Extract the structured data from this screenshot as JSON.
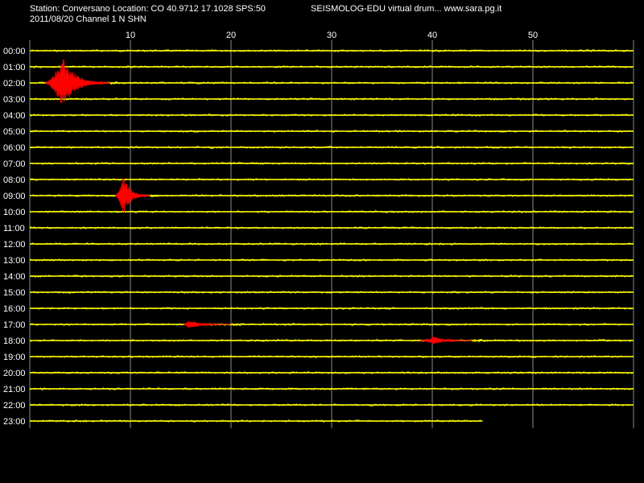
{
  "header": {
    "station_line": "Station: Conversano Location: CO 40.9712 17.1028 SPS:50",
    "app_line": "SEISMOLOG-EDU virtual drum... www.sara.pg.it",
    "date_channel_line": "2011/08/20  Channel 1 N SHN"
  },
  "colors": {
    "background": "#000000",
    "grid": "#8a8a8a",
    "trace": "#ffff00",
    "event": "#ff0000",
    "text": "#ffffff"
  },
  "chart_data": {
    "type": "line",
    "title": "",
    "xlabel": "",
    "ylabel": "",
    "x_unit": "minutes",
    "xlim": [
      0,
      60
    ],
    "x_ticks": [
      10,
      20,
      30,
      40,
      50
    ],
    "grid": true,
    "hour_labels": [
      "00:00",
      "01:00",
      "02:00",
      "03:00",
      "04:00",
      "05:00",
      "06:00",
      "07:00",
      "08:00",
      "09:00",
      "10:00",
      "11:00",
      "12:00",
      "13:00",
      "14:00",
      "15:00",
      "16:00",
      "17:00",
      "18:00",
      "19:00",
      "20:00",
      "21:00",
      "22:00",
      "23:00"
    ],
    "last_trace_end_minute": 45,
    "events": [
      {
        "hour": 2,
        "start_min": 1.5,
        "peak_min": 3.3,
        "end_min": 8.0,
        "amplitude_rows": 1.6
      },
      {
        "hour": 9,
        "start_min": 8.5,
        "peak_min": 9.3,
        "end_min": 12.0,
        "amplitude_rows": 1.3
      },
      {
        "hour": 17,
        "start_min": 15.3,
        "peak_min": 15.8,
        "end_min": 20.0,
        "amplitude_rows": 0.3
      },
      {
        "hour": 18,
        "start_min": 38.8,
        "peak_min": 40.2,
        "end_min": 44.0,
        "amplitude_rows": 0.3
      }
    ]
  }
}
